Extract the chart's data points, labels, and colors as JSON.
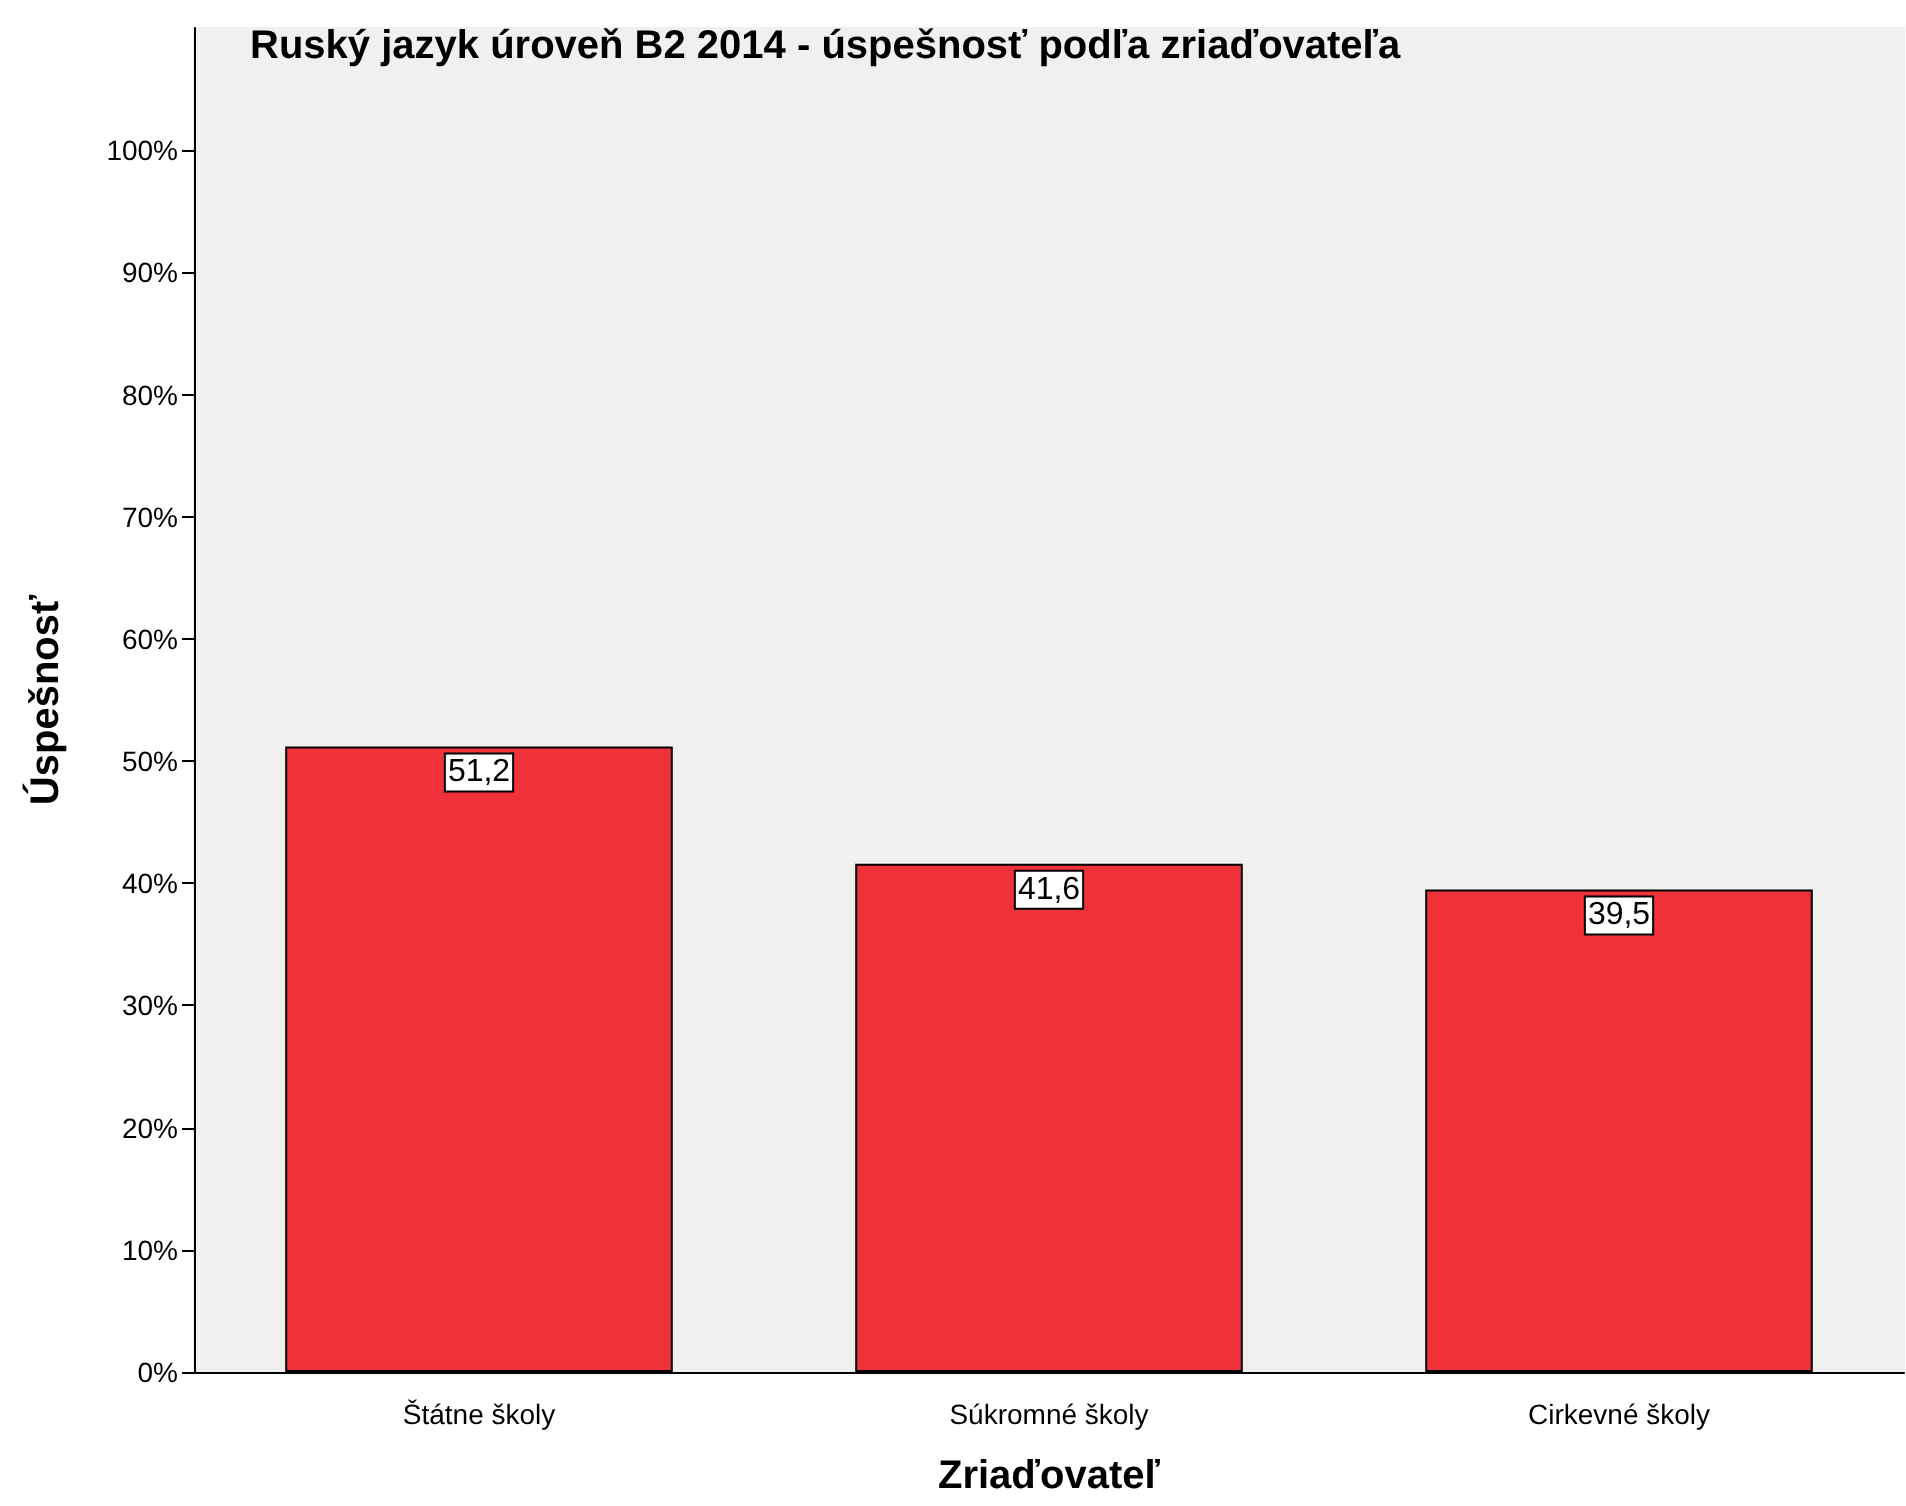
{
  "chart_data": {
    "type": "bar",
    "title": "Ruský jazyk úroveň B2 2014 - úspešnosť podľa zriaďovateľa",
    "xlabel": "Zriaďovateľ",
    "ylabel": "Úspešnosť",
    "categories": [
      "Štátne školy",
      "Súkromné školy",
      "Cirkevné školy"
    ],
    "values": [
      51.2,
      41.6,
      39.5
    ],
    "color": "#ef323a",
    "value_labels": [
      "51,2",
      "41,6",
      "39,5"
    ],
    "ylim": [
      0,
      110
    ],
    "yticks": [
      {
        "value": 0,
        "label": "0%"
      },
      {
        "value": 10,
        "label": "10%"
      },
      {
        "value": 20,
        "label": "20%"
      },
      {
        "value": 30,
        "label": "30%"
      },
      {
        "value": 40,
        "label": "40%"
      },
      {
        "value": 50,
        "label": "50%"
      },
      {
        "value": 60,
        "label": "60%"
      },
      {
        "value": 70,
        "label": "70%"
      },
      {
        "value": 80,
        "label": "80%"
      },
      {
        "value": 90,
        "label": "90%"
      },
      {
        "value": 100,
        "label": "100%"
      }
    ],
    "grid": false
  }
}
